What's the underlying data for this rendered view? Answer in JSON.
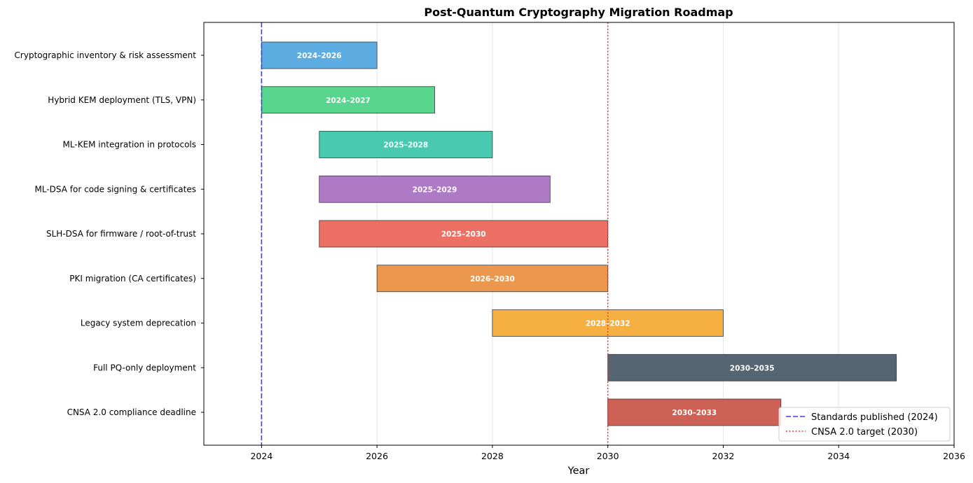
{
  "chart_data": {
    "type": "gantt",
    "title": "Post-Quantum Cryptography Migration Roadmap",
    "xlabel": "Year",
    "ylabel": "",
    "xlim": [
      2023,
      2036
    ],
    "xticks": [
      2024,
      2026,
      2028,
      2030,
      2032,
      2034,
      2036
    ],
    "grid": "vertical",
    "legend_position": "bottom-right",
    "tasks": [
      {
        "name": "Cryptographic inventory & risk assessment",
        "start": 2024,
        "end": 2026,
        "label": "2024–2026",
        "color": "#5dade2"
      },
      {
        "name": "Hybrid KEM deployment (TLS, VPN)",
        "start": 2024,
        "end": 2027,
        "label": "2024–2027",
        "color": "#58d68d"
      },
      {
        "name": "ML-KEM integration in protocols",
        "start": 2025,
        "end": 2028,
        "label": "2025–2028",
        "color": "#48c9b0"
      },
      {
        "name": "ML-DSA for code signing & certificates",
        "start": 2025,
        "end": 2029,
        "label": "2025–2029",
        "color": "#af7ac5"
      },
      {
        "name": "SLH-DSA for firmware / root-of-trust",
        "start": 2025,
        "end": 2030,
        "label": "2025–2030",
        "color": "#ec7063"
      },
      {
        "name": "PKI migration (CA certificates)",
        "start": 2026,
        "end": 2030,
        "label": "2026–2030",
        "color": "#eb984e"
      },
      {
        "name": "Legacy system deprecation",
        "start": 2028,
        "end": 2032,
        "label": "2028–2032",
        "color": "#f5b041"
      },
      {
        "name": "Full PQ-only deployment",
        "start": 2030,
        "end": 2035,
        "label": "2030–2035",
        "color": "#566573"
      },
      {
        "name": "CNSA 2.0 compliance deadline",
        "start": 2030,
        "end": 2033,
        "label": "2030–2033",
        "color": "#cd6155"
      }
    ],
    "reference_lines": [
      {
        "x": 2024,
        "label": "Standards published (2024)",
        "color": "#3b3bef",
        "style": "dashed"
      },
      {
        "x": 2030,
        "label": "CNSA 2.0 target (2030)",
        "color": "#ef3b3b",
        "style": "dotted"
      }
    ]
  }
}
